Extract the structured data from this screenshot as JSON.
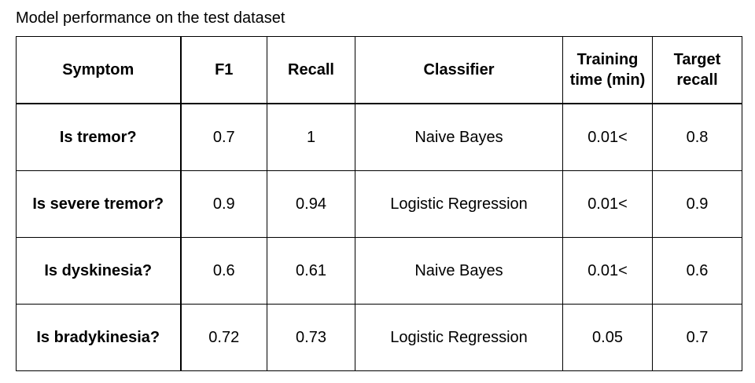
{
  "caption": "Model performance on the test dataset",
  "table": {
    "headers": {
      "symptom": "Symptom",
      "f1": "F1",
      "recall": "Recall",
      "classifier": "Classifier",
      "training_time": [
        "Training",
        "time (min)"
      ],
      "target_recall": [
        "Target",
        "recall"
      ]
    },
    "rows": [
      {
        "symptom": "Is tremor?",
        "f1": "0.7",
        "recall": "1",
        "classifier": "Naive Bayes",
        "training_time": "0.01<",
        "target_recall": "0.8"
      },
      {
        "symptom": "Is severe tremor?",
        "f1": "0.9",
        "recall": "0.94",
        "classifier": "Logistic Regression",
        "training_time": "0.01<",
        "target_recall": "0.9"
      },
      {
        "symptom": "Is dyskinesia?",
        "f1": "0.6",
        "recall": "0.61",
        "classifier": "Naive Bayes",
        "training_time": "0.01<",
        "target_recall": "0.6"
      },
      {
        "symptom": "Is bradykinesia?",
        "f1": "0.72",
        "recall": "0.73",
        "classifier": "Logistic Regression",
        "training_time": "0.05",
        "target_recall": "0.7"
      }
    ]
  }
}
